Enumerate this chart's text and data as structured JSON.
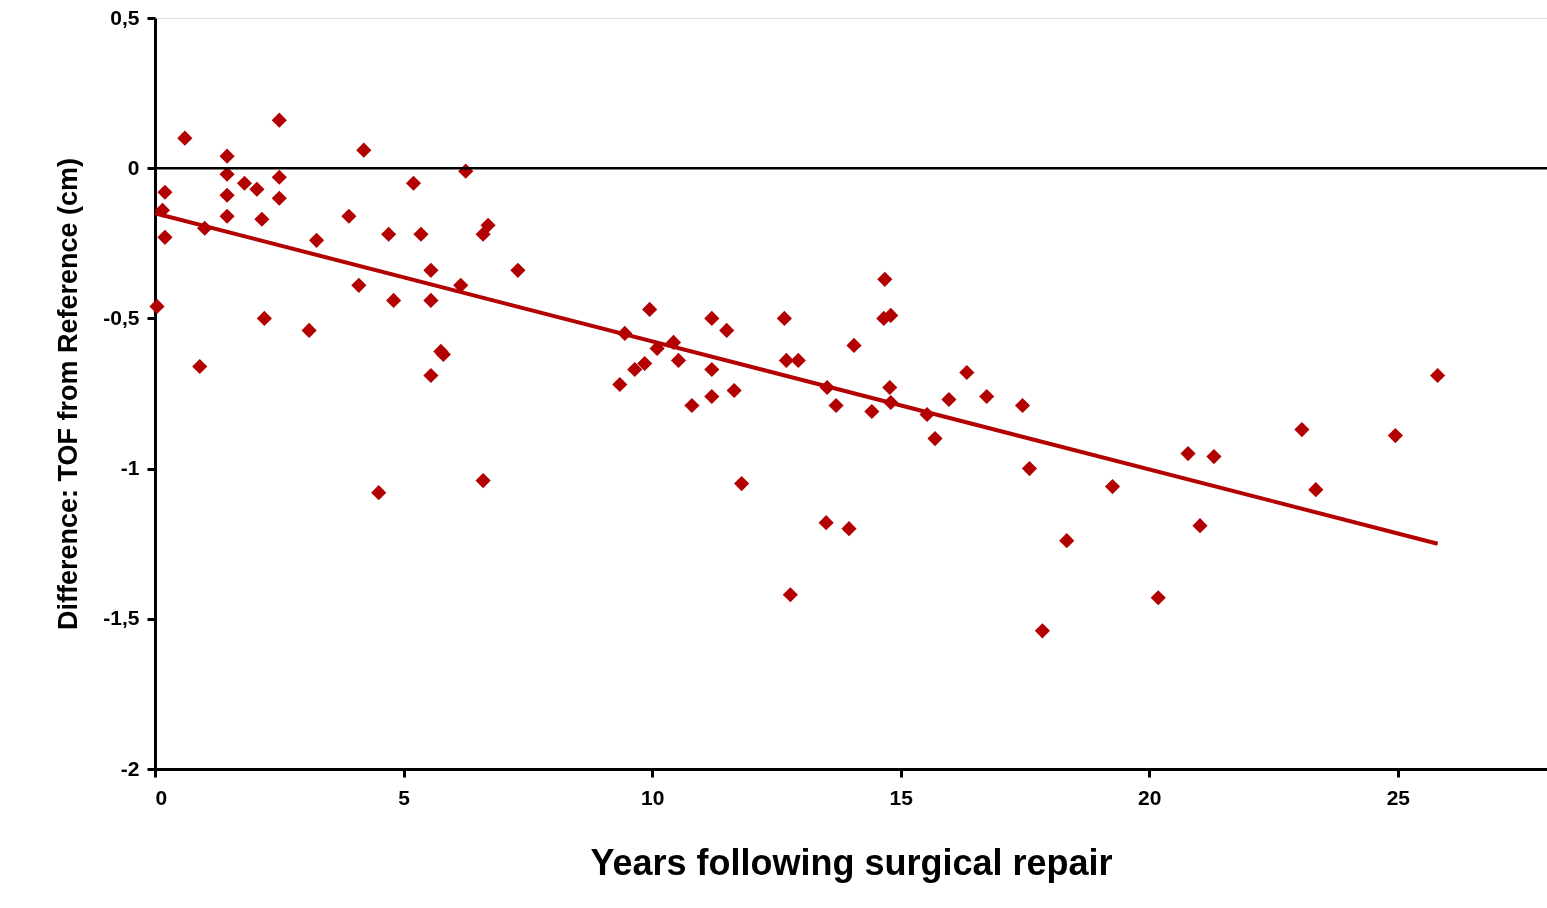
{
  "chart_data": {
    "type": "scatter",
    "xlabel": "Years following surgical repair",
    "ylabel": "Difference: TOF from Reference (cm)",
    "xlim": [
      0,
      28
    ],
    "xticks": [
      0,
      5,
      10,
      15,
      20,
      25
    ],
    "ylim": [
      -2,
      0.5
    ],
    "yticks": [
      {
        "value": 0.5,
        "label": "0,5"
      },
      0,
      {
        "value": -0.5,
        "label": "-0,5"
      },
      -1,
      {
        "value": -1.5,
        "label": "-1,5"
      },
      -2
    ],
    "grid": false,
    "ref_lines": [
      {
        "axis": "y",
        "value": 0,
        "color": "#000000"
      }
    ],
    "series": [
      {
        "type": "scatter",
        "marker": "diamond",
        "color": "#b30000",
        "x": [
          0.04,
          0.2,
          0.15,
          0.2,
          0.6,
          0.9,
          1.0,
          1.45,
          1.45,
          1.45,
          1.45,
          1.8,
          2.05,
          2.15,
          2.2,
          2.5,
          2.5,
          2.5,
          3.1,
          3.25,
          3.9,
          4.1,
          4.2,
          4.5,
          4.7,
          4.8,
          5.2,
          5.35,
          5.55,
          5.55,
          5.55,
          5.75,
          5.8,
          6.15,
          6.25,
          6.6,
          6.7,
          6.6,
          7.3,
          9.35,
          9.45,
          9.65,
          9.85,
          9.95,
          10.1,
          10.43,
          10.53,
          10.8,
          11.2,
          11.2,
          11.2,
          11.5,
          11.65,
          11.8,
          12.66,
          12.7,
          12.94,
          12.78,
          13.52,
          13.7,
          13.5,
          13.96,
          14.06,
          14.42,
          14.68,
          14.66,
          14.8,
          14.78,
          14.8,
          15.53,
          15.69,
          15.97,
          16.33,
          16.73,
          17.45,
          17.59,
          17.85,
          18.34,
          19.26,
          20.18,
          20.78,
          21.02,
          21.3,
          23.07,
          23.35,
          24.95,
          25.8
        ],
        "values": [
          -0.46,
          -0.08,
          -0.14,
          -0.23,
          0.1,
          -0.66,
          -0.2,
          0.04,
          -0.02,
          -0.09,
          -0.16,
          -0.05,
          -0.07,
          -0.17,
          -0.5,
          0.16,
          -0.03,
          -0.1,
          -0.54,
          -0.24,
          -0.16,
          -0.39,
          0.06,
          -1.08,
          -0.22,
          -0.44,
          -0.05,
          -0.22,
          -0.34,
          -0.44,
          -0.69,
          -0.61,
          -0.62,
          -0.39,
          -0.01,
          -0.22,
          -0.19,
          -1.04,
          -0.34,
          -0.72,
          -0.55,
          -0.67,
          -0.65,
          -0.47,
          -0.6,
          -0.58,
          -0.64,
          -0.79,
          -0.5,
          -0.67,
          -0.76,
          -0.54,
          -0.74,
          -1.05,
          -0.5,
          -0.64,
          -0.64,
          -1.42,
          -0.73,
          -0.79,
          -1.18,
          -1.2,
          -0.59,
          -0.81,
          -0.37,
          -0.5,
          -0.49,
          -0.73,
          -0.78,
          -0.82,
          -0.9,
          -0.77,
          -0.68,
          -0.76,
          -0.79,
          -1.0,
          -1.54,
          -1.24,
          -1.06,
          -1.43,
          -0.95,
          -1.19,
          -0.96,
          -0.87,
          -1.07,
          -0.89,
          -0.69
        ]
      },
      {
        "type": "line",
        "marker": "none",
        "line_style": "solid",
        "color": "#b30000",
        "x": [
          0,
          25.8
        ],
        "values": [
          -0.15,
          -1.25
        ]
      }
    ]
  }
}
